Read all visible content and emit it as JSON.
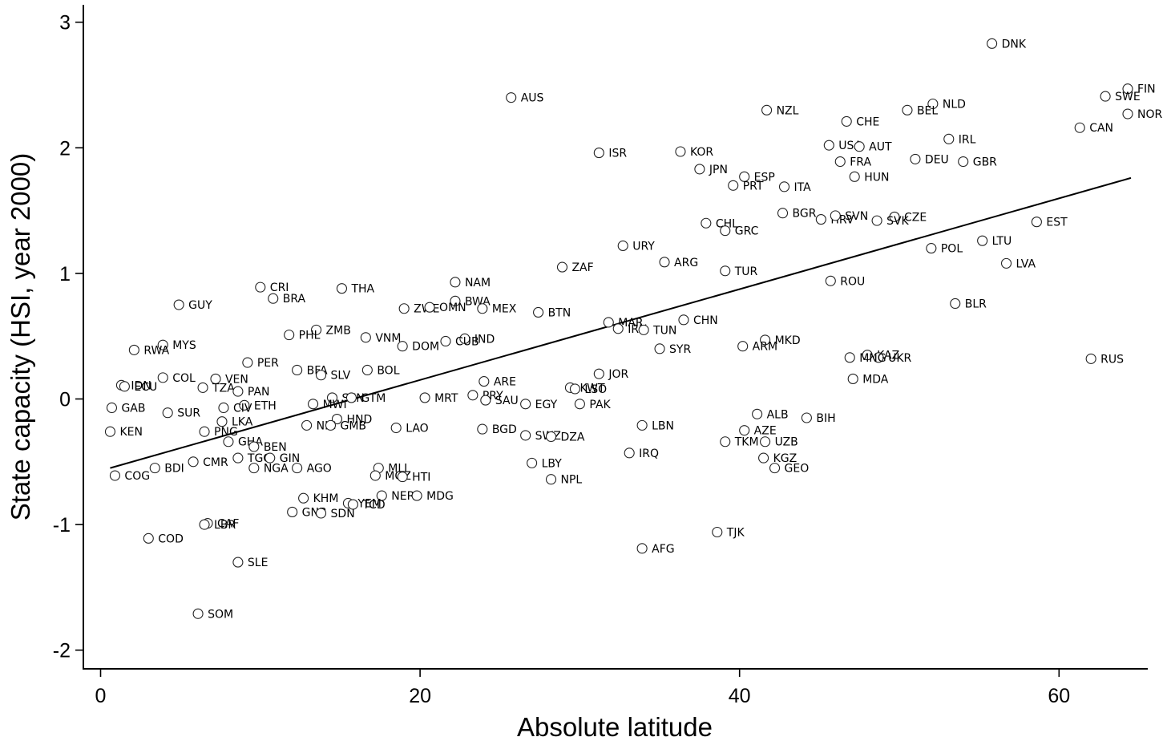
{
  "chart_data": {
    "type": "scatter",
    "xlabel": "Absolute latitude",
    "ylabel": "State capacity (HSI, year 2000)",
    "xlim": [
      -1.2,
      65.5
    ],
    "ylim": [
      -2.22,
      3.12
    ],
    "xticks": [
      0,
      20,
      40,
      60
    ],
    "yticks": [
      -2,
      -1,
      0,
      1,
      2,
      3
    ],
    "xtick_labels": [
      "0",
      "20",
      "40",
      "60"
    ],
    "ytick_labels": [
      "-2",
      "-1",
      "0",
      "1",
      "2",
      "3"
    ],
    "grid": false,
    "fit_line": {
      "x": [
        0.6,
        64.5
      ],
      "y": [
        -0.55,
        1.76
      ]
    },
    "points": [
      {
        "label": "DNK",
        "x": 55.8,
        "y": 2.83
      },
      {
        "label": "FIN",
        "x": 64.3,
        "y": 2.47
      },
      {
        "label": "SWE",
        "x": 62.9,
        "y": 2.41
      },
      {
        "label": "NOR",
        "x": 64.3,
        "y": 2.27
      },
      {
        "label": "CAN",
        "x": 61.3,
        "y": 2.16
      },
      {
        "label": "AUS",
        "x": 25.7,
        "y": 2.4
      },
      {
        "label": "NZL",
        "x": 41.7,
        "y": 2.3
      },
      {
        "label": "NLD",
        "x": 52.1,
        "y": 2.35
      },
      {
        "label": "BEL",
        "x": 50.5,
        "y": 2.3
      },
      {
        "label": "CHE",
        "x": 46.7,
        "y": 2.21
      },
      {
        "label": "IRL",
        "x": 53.1,
        "y": 2.07
      },
      {
        "label": "USA",
        "x": 45.6,
        "y": 2.02
      },
      {
        "label": "AUT",
        "x": 47.5,
        "y": 2.01
      },
      {
        "label": "ISR",
        "x": 31.2,
        "y": 1.96
      },
      {
        "label": "KOR",
        "x": 36.3,
        "y": 1.97
      },
      {
        "label": "DEU",
        "x": 51.0,
        "y": 1.91
      },
      {
        "label": "FRA",
        "x": 46.3,
        "y": 1.89
      },
      {
        "label": "GBR",
        "x": 54.0,
        "y": 1.89
      },
      {
        "label": "JPN",
        "x": 37.5,
        "y": 1.83
      },
      {
        "label": "HUN",
        "x": 47.2,
        "y": 1.77
      },
      {
        "label": "ESP",
        "x": 40.3,
        "y": 1.77
      },
      {
        "label": "PRT",
        "x": 39.6,
        "y": 1.7
      },
      {
        "label": "ITA",
        "x": 42.8,
        "y": 1.69
      },
      {
        "label": "BGR",
        "x": 42.7,
        "y": 1.48
      },
      {
        "label": "HRV",
        "x": 45.1,
        "y": 1.43
      },
      {
        "label": "SVN",
        "x": 46.0,
        "y": 1.46
      },
      {
        "label": "CZE",
        "x": 49.7,
        "y": 1.45
      },
      {
        "label": "SVK",
        "x": 48.6,
        "y": 1.42
      },
      {
        "label": "EST",
        "x": 58.6,
        "y": 1.41
      },
      {
        "label": "CHL",
        "x": 37.9,
        "y": 1.4
      },
      {
        "label": "GRC",
        "x": 39.1,
        "y": 1.34
      },
      {
        "label": "LTU",
        "x": 55.2,
        "y": 1.26
      },
      {
        "label": "URY",
        "x": 32.7,
        "y": 1.22
      },
      {
        "label": "POL",
        "x": 52.0,
        "y": 1.2
      },
      {
        "label": "ARG",
        "x": 35.3,
        "y": 1.09
      },
      {
        "label": "LVA",
        "x": 56.7,
        "y": 1.08
      },
      {
        "label": "ZAF",
        "x": 28.9,
        "y": 1.05
      },
      {
        "label": "TUR",
        "x": 39.1,
        "y": 1.02
      },
      {
        "label": "ROU",
        "x": 45.7,
        "y": 0.94
      },
      {
        "label": "CRI",
        "x": 10.0,
        "y": 0.89
      },
      {
        "label": "THA",
        "x": 15.1,
        "y": 0.88
      },
      {
        "label": "NAM",
        "x": 22.2,
        "y": 0.93
      },
      {
        "label": "BRA",
        "x": 10.8,
        "y": 0.8
      },
      {
        "label": "BWA",
        "x": 22.2,
        "y": 0.78
      },
      {
        "label": "BLR",
        "x": 53.5,
        "y": 0.76
      },
      {
        "label": "GUY",
        "x": 4.9,
        "y": 0.75
      },
      {
        "label": "ZWE",
        "x": 19.0,
        "y": 0.72
      },
      {
        "label": "OMN",
        "x": 20.6,
        "y": 0.73
      },
      {
        "label": "MEX",
        "x": 23.9,
        "y": 0.72
      },
      {
        "label": "BTN",
        "x": 27.4,
        "y": 0.69
      },
      {
        "label": "MAR",
        "x": 31.8,
        "y": 0.61
      },
      {
        "label": "CHN",
        "x": 36.5,
        "y": 0.63
      },
      {
        "label": "IRN",
        "x": 32.4,
        "y": 0.56
      },
      {
        "label": "TUN",
        "x": 34.0,
        "y": 0.55
      },
      {
        "label": "ZMB",
        "x": 13.5,
        "y": 0.55
      },
      {
        "label": "PHL",
        "x": 11.8,
        "y": 0.51
      },
      {
        "label": "VNM",
        "x": 16.6,
        "y": 0.49
      },
      {
        "label": "IND",
        "x": 22.8,
        "y": 0.48
      },
      {
        "label": "MKD",
        "x": 41.6,
        "y": 0.47
      },
      {
        "label": "CUB",
        "x": 21.6,
        "y": 0.46
      },
      {
        "label": "MYS",
        "x": 3.9,
        "y": 0.43
      },
      {
        "label": "DOM",
        "x": 18.9,
        "y": 0.42
      },
      {
        "label": "ARM",
        "x": 40.2,
        "y": 0.42
      },
      {
        "label": "SYR",
        "x": 35.0,
        "y": 0.4
      },
      {
        "label": "RWA",
        "x": 2.1,
        "y": 0.39
      },
      {
        "label": "KAZ",
        "x": 48.0,
        "y": 0.35
      },
      {
        "label": "UKR",
        "x": 48.7,
        "y": 0.33
      },
      {
        "label": "MNG",
        "x": 46.9,
        "y": 0.33
      },
      {
        "label": "RUS",
        "x": 62.0,
        "y": 0.32
      },
      {
        "label": "PER",
        "x": 9.2,
        "y": 0.29
      },
      {
        "label": "BFA",
        "x": 12.3,
        "y": 0.23
      },
      {
        "label": "BOL",
        "x": 16.7,
        "y": 0.23
      },
      {
        "label": "JOR",
        "x": 31.2,
        "y": 0.2
      },
      {
        "label": "SLV",
        "x": 13.8,
        "y": 0.19
      },
      {
        "label": "COL",
        "x": 3.9,
        "y": 0.17
      },
      {
        "label": "VEN",
        "x": 7.2,
        "y": 0.16
      },
      {
        "label": "MDA",
        "x": 47.1,
        "y": 0.16
      },
      {
        "label": "ARE",
        "x": 24.0,
        "y": 0.14
      },
      {
        "label": "IDN",
        "x": 1.3,
        "y": 0.11
      },
      {
        "label": "ECU",
        "x": 1.5,
        "y": 0.1
      },
      {
        "label": "TZA",
        "x": 6.4,
        "y": 0.09
      },
      {
        "label": "KWT",
        "x": 29.4,
        "y": 0.09
      },
      {
        "label": "LSO",
        "x": 29.7,
        "y": 0.08
      },
      {
        "label": "PAN",
        "x": 8.6,
        "y": 0.06
      },
      {
        "label": "PRY",
        "x": 23.3,
        "y": 0.03
      },
      {
        "label": "MRT",
        "x": 20.3,
        "y": 0.01
      },
      {
        "label": "SEN",
        "x": 14.5,
        "y": 0.01
      },
      {
        "label": "GTM",
        "x": 15.7,
        "y": 0.01
      },
      {
        "label": "SAU",
        "x": 24.1,
        "y": -0.01
      },
      {
        "label": "MWI",
        "x": 13.3,
        "y": -0.04
      },
      {
        "label": "EGY",
        "x": 26.6,
        "y": -0.04
      },
      {
        "label": "PAK",
        "x": 30.0,
        "y": -0.04
      },
      {
        "label": "ETH",
        "x": 9.0,
        "y": -0.05
      },
      {
        "label": "CIV",
        "x": 7.7,
        "y": -0.07
      },
      {
        "label": "GAB",
        "x": 0.7,
        "y": -0.07
      },
      {
        "label": "SUR",
        "x": 4.2,
        "y": -0.11
      },
      {
        "label": "ALB",
        "x": 41.1,
        "y": -0.12
      },
      {
        "label": "BIH",
        "x": 44.2,
        "y": -0.15
      },
      {
        "label": "HND",
        "x": 14.8,
        "y": -0.16
      },
      {
        "label": "LKA",
        "x": 7.6,
        "y": -0.18
      },
      {
        "label": "NIC",
        "x": 12.9,
        "y": -0.21
      },
      {
        "label": "GMB",
        "x": 14.4,
        "y": -0.21
      },
      {
        "label": "LBN",
        "x": 33.9,
        "y": -0.21
      },
      {
        "label": "LAO",
        "x": 18.5,
        "y": -0.23
      },
      {
        "label": "BGD",
        "x": 23.9,
        "y": -0.24
      },
      {
        "label": "AZE",
        "x": 40.3,
        "y": -0.25
      },
      {
        "label": "KEN",
        "x": 0.6,
        "y": -0.26
      },
      {
        "label": "PNG",
        "x": 6.5,
        "y": -0.26
      },
      {
        "label": "SWZ",
        "x": 26.6,
        "y": -0.29
      },
      {
        "label": "DZA",
        "x": 28.2,
        "y": -0.3
      },
      {
        "label": "GHA",
        "x": 8.0,
        "y": -0.34
      },
      {
        "label": "TKM",
        "x": 39.1,
        "y": -0.34
      },
      {
        "label": "UZB",
        "x": 41.6,
        "y": -0.34
      },
      {
        "label": "BEN",
        "x": 9.6,
        "y": -0.38
      },
      {
        "label": "IRQ",
        "x": 33.1,
        "y": -0.43
      },
      {
        "label": "TGO",
        "x": 8.6,
        "y": -0.47
      },
      {
        "label": "GIN",
        "x": 10.6,
        "y": -0.47
      },
      {
        "label": "KGZ",
        "x": 41.5,
        "y": -0.47
      },
      {
        "label": "CMR",
        "x": 5.8,
        "y": -0.5
      },
      {
        "label": "LBY",
        "x": 27.0,
        "y": -0.51
      },
      {
        "label": "BDI",
        "x": 3.4,
        "y": -0.55
      },
      {
        "label": "NGA",
        "x": 9.6,
        "y": -0.55
      },
      {
        "label": "AGO",
        "x": 12.3,
        "y": -0.55
      },
      {
        "label": "MLI",
        "x": 17.4,
        "y": -0.55
      },
      {
        "label": "GEO",
        "x": 42.2,
        "y": -0.55
      },
      {
        "label": "COG",
        "x": 0.9,
        "y": -0.61
      },
      {
        "label": "MOZ",
        "x": 17.2,
        "y": -0.61
      },
      {
        "label": "HTI",
        "x": 18.9,
        "y": -0.62
      },
      {
        "label": "NPL",
        "x": 28.2,
        "y": -0.64
      },
      {
        "label": "NER",
        "x": 17.6,
        "y": -0.77
      },
      {
        "label": "MDG",
        "x": 19.8,
        "y": -0.77
      },
      {
        "label": "KHM",
        "x": 12.7,
        "y": -0.79
      },
      {
        "label": "YEM",
        "x": 15.5,
        "y": -0.83
      },
      {
        "label": "TCD",
        "x": 15.8,
        "y": -0.84
      },
      {
        "label": "GNB",
        "x": 12.0,
        "y": -0.9
      },
      {
        "label": "SDN",
        "x": 13.8,
        "y": -0.91
      },
      {
        "label": "CAF",
        "x": 6.7,
        "y": -0.99
      },
      {
        "label": "LBR",
        "x": 6.5,
        "y": -1.0
      },
      {
        "label": "TJK",
        "x": 38.6,
        "y": -1.06
      },
      {
        "label": "COD",
        "x": 3.0,
        "y": -1.11
      },
      {
        "label": "AFG",
        "x": 33.9,
        "y": -1.19
      },
      {
        "label": "SLE",
        "x": 8.6,
        "y": -1.3
      },
      {
        "label": "SOM",
        "x": 6.1,
        "y": -1.71
      }
    ]
  }
}
